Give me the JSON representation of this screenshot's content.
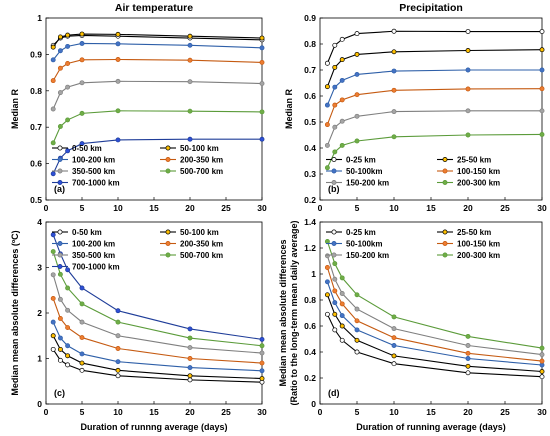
{
  "chart_data": [
    {
      "id": "a",
      "type": "line",
      "title": "Air temperature",
      "panel_label": "(a)",
      "xlabel": "",
      "ylabel": "Median R",
      "xlim": [
        0,
        30
      ],
      "ylim": [
        0.5,
        1
      ],
      "xticks": [
        0,
        5,
        10,
        15,
        20,
        25,
        30
      ],
      "yticks": [
        0.5,
        0.6,
        0.7,
        0.8,
        0.9,
        1
      ],
      "ytick_labels": [
        "0.5",
        "0.6",
        "0.7",
        "0.8",
        "0.9",
        "1"
      ],
      "x": [
        1,
        2,
        3,
        5,
        10,
        20,
        30
      ],
      "series": [
        {
          "name": "0-50 km",
          "color": "#000000",
          "marker": "#ffffff",
          "values": [
            0.925,
            0.945,
            0.95,
            0.952,
            0.95,
            0.945,
            0.94
          ]
        },
        {
          "name": "50-100 km",
          "color": "#000000",
          "marker": "#ffc000",
          "values": [
            0.92,
            0.948,
            0.953,
            0.956,
            0.955,
            0.95,
            0.945
          ]
        },
        {
          "name": "100-200 km",
          "color": "#2e5fa8",
          "marker": "#4472c4",
          "values": [
            0.885,
            0.91,
            0.922,
            0.93,
            0.929,
            0.925,
            0.918
          ]
        },
        {
          "name": "200-350 km",
          "color": "#c55a11",
          "marker": "#ed7d31",
          "values": [
            0.828,
            0.862,
            0.875,
            0.885,
            0.886,
            0.884,
            0.878
          ]
        },
        {
          "name": "350-500 km",
          "color": "#7f7f7f",
          "marker": "#a5a5a5",
          "values": [
            0.75,
            0.795,
            0.81,
            0.822,
            0.826,
            0.825,
            0.82
          ]
        },
        {
          "name": "500-700 km",
          "color": "#5b9b3a",
          "marker": "#70ad47",
          "values": [
            0.657,
            0.702,
            0.72,
            0.738,
            0.745,
            0.744,
            0.742
          ]
        },
        {
          "name": "700-1000 km",
          "color": "#1f3d99",
          "marker": "#2e4fd6",
          "values": [
            0.572,
            0.615,
            0.635,
            0.655,
            0.665,
            0.667,
            0.667
          ]
        }
      ],
      "legend_columns": 2,
      "legend_placement": "bottom-right"
    },
    {
      "id": "b",
      "type": "line",
      "title": "Precipitation",
      "panel_label": "(b)",
      "xlabel": "",
      "ylabel": "Median R",
      "xlim": [
        0,
        30
      ],
      "ylim": [
        0.2,
        0.9
      ],
      "xticks": [
        0,
        5,
        10,
        15,
        20,
        25,
        30
      ],
      "yticks": [
        0.2,
        0.3,
        0.4,
        0.5,
        0.6,
        0.7,
        0.8,
        0.9
      ],
      "ytick_labels": [
        "0.2",
        "0.3",
        "0.4",
        "0.5",
        "0.6",
        "0.7",
        "0.8",
        "0.9"
      ],
      "x": [
        1,
        2,
        3,
        5,
        10,
        20,
        30
      ],
      "series": [
        {
          "name": "0-25 km",
          "color": "#000000",
          "marker": "#ffffff",
          "values": [
            0.726,
            0.795,
            0.818,
            0.84,
            0.849,
            0.848,
            0.848
          ]
        },
        {
          "name": "25-50 km",
          "color": "#000000",
          "marker": "#ffc000",
          "values": [
            0.636,
            0.71,
            0.74,
            0.76,
            0.77,
            0.775,
            0.778
          ]
        },
        {
          "name": "50-100km",
          "color": "#2e5fa8",
          "marker": "#4472c4",
          "values": [
            0.565,
            0.634,
            0.66,
            0.683,
            0.696,
            0.7,
            0.7
          ]
        },
        {
          "name": "100-150 km",
          "color": "#c55a11",
          "marker": "#ed7d31",
          "values": [
            0.49,
            0.565,
            0.585,
            0.605,
            0.622,
            0.627,
            0.628
          ]
        },
        {
          "name": "150-200 km",
          "color": "#7f7f7f",
          "marker": "#a5a5a5",
          "values": [
            0.41,
            0.48,
            0.503,
            0.522,
            0.54,
            0.543,
            0.543
          ]
        },
        {
          "name": "200-300 km",
          "color": "#5b9b3a",
          "marker": "#70ad47",
          "values": [
            0.324,
            0.385,
            0.41,
            0.427,
            0.443,
            0.45,
            0.452
          ]
        }
      ],
      "legend_columns": 2,
      "legend_placement": "bottom-right"
    },
    {
      "id": "c",
      "type": "line",
      "title": "",
      "panel_label": "(c)",
      "xlabel": "Duration of runnng average (days)",
      "ylabel": "Median mean absolute differences (ºC)",
      "xlim": [
        0,
        30
      ],
      "ylim": [
        0,
        4
      ],
      "xticks": [
        0,
        5,
        10,
        15,
        20,
        25,
        30
      ],
      "yticks": [
        0,
        1,
        2,
        3,
        4
      ],
      "ytick_labels": [
        "0",
        "1",
        "2",
        "3",
        "4"
      ],
      "x": [
        1,
        2,
        3,
        5,
        10,
        20,
        30
      ],
      "series": [
        {
          "name": "0-50 km",
          "color": "#000000",
          "marker": "#ffffff",
          "values": [
            1.2,
            0.96,
            0.86,
            0.74,
            0.62,
            0.53,
            0.48
          ]
        },
        {
          "name": "50-100 km",
          "color": "#000000",
          "marker": "#ffc000",
          "values": [
            1.5,
            1.2,
            1.06,
            0.9,
            0.74,
            0.62,
            0.56
          ]
        },
        {
          "name": "100-200 km",
          "color": "#2e5fa8",
          "marker": "#4472c4",
          "values": [
            1.8,
            1.45,
            1.28,
            1.1,
            0.93,
            0.8,
            0.73
          ]
        },
        {
          "name": "200-350 km",
          "color": "#c55a11",
          "marker": "#ed7d31",
          "values": [
            2.32,
            1.88,
            1.68,
            1.46,
            1.22,
            1.0,
            0.9
          ]
        },
        {
          "name": "350-500 km",
          "color": "#7f7f7f",
          "marker": "#a5a5a5",
          "values": [
            2.84,
            2.3,
            2.06,
            1.8,
            1.5,
            1.24,
            1.12
          ]
        },
        {
          "name": "500-700 km",
          "color": "#5b9b3a",
          "marker": "#70ad47",
          "values": [
            3.35,
            2.85,
            2.55,
            2.2,
            1.8,
            1.45,
            1.28
          ]
        },
        {
          "name": "700-1000 km",
          "color": "#1f3d99",
          "marker": "#2e4fd6",
          "values": [
            3.72,
            3.3,
            2.95,
            2.55,
            2.05,
            1.65,
            1.42
          ]
        }
      ],
      "legend_columns": 2,
      "legend_placement": "top-right"
    },
    {
      "id": "d",
      "type": "line",
      "title": "",
      "panel_label": "(d)",
      "xlabel": "Duration of running average (days)",
      "ylabel": "Median mean absolute differences (Ratio to the long-term mean daily average)",
      "ylabel_lines": [
        "Median mean absolute differences",
        "(Ratio to the long-term mean daily average)"
      ],
      "xlim": [
        0,
        30
      ],
      "ylim": [
        0,
        1.4
      ],
      "xticks": [
        0,
        5,
        10,
        15,
        20,
        25,
        30
      ],
      "yticks": [
        0,
        0.2,
        0.4,
        0.6,
        0.8,
        1,
        1.2,
        1.4
      ],
      "ytick_labels": [
        "0",
        "0.2",
        "0.4",
        "0.6",
        "0.8",
        "1",
        "1.2",
        "1.4"
      ],
      "x": [
        1,
        2,
        3,
        5,
        10,
        20,
        30
      ],
      "series": [
        {
          "name": "0-25 km",
          "color": "#000000",
          "marker": "#ffffff",
          "values": [
            0.69,
            0.57,
            0.49,
            0.4,
            0.31,
            0.24,
            0.21
          ]
        },
        {
          "name": "25-50 km",
          "color": "#000000",
          "marker": "#ffc000",
          "values": [
            0.84,
            0.69,
            0.6,
            0.49,
            0.37,
            0.29,
            0.25
          ]
        },
        {
          "name": "50-100km",
          "color": "#2e5fa8",
          "marker": "#4472c4",
          "values": [
            0.94,
            0.78,
            0.68,
            0.57,
            0.45,
            0.35,
            0.3
          ]
        },
        {
          "name": "100-150 km",
          "color": "#c55a11",
          "marker": "#ed7d31",
          "values": [
            1.05,
            0.87,
            0.77,
            0.64,
            0.51,
            0.39,
            0.33
          ]
        },
        {
          "name": "150-200 km",
          "color": "#7f7f7f",
          "marker": "#a5a5a5",
          "values": [
            1.14,
            0.96,
            0.85,
            0.73,
            0.58,
            0.45,
            0.38
          ]
        },
        {
          "name": "200-300 km",
          "color": "#5b9b3a",
          "marker": "#70ad47",
          "values": [
            1.25,
            1.08,
            0.97,
            0.84,
            0.67,
            0.52,
            0.43
          ]
        }
      ],
      "legend_columns": 2,
      "legend_placement": "top-right"
    }
  ]
}
